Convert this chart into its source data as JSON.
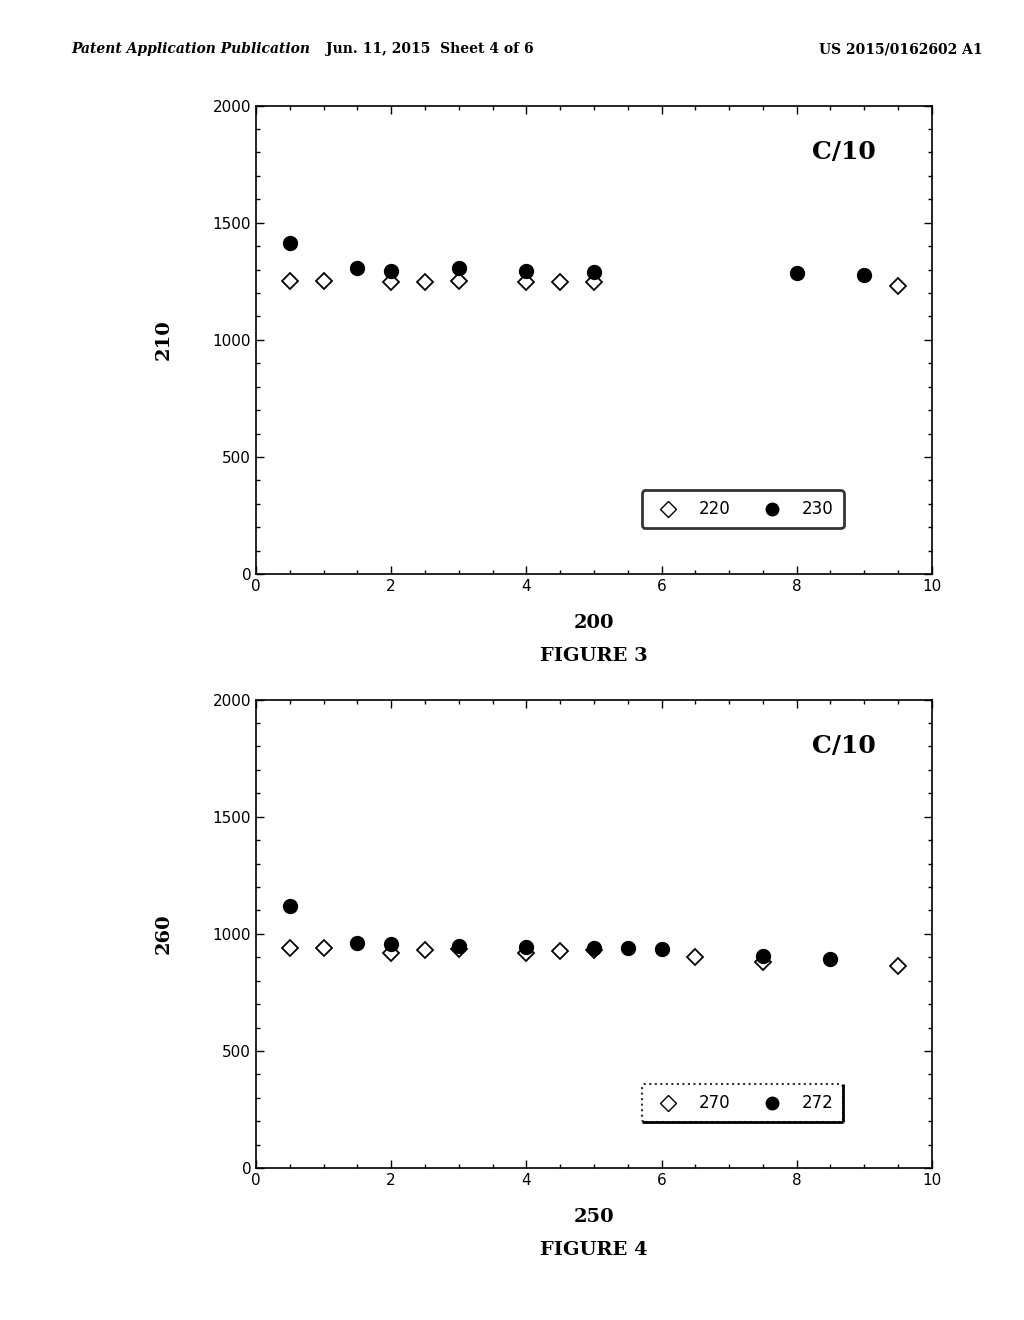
{
  "fig3": {
    "ylabel": "210",
    "xlabel": "200",
    "title_text": "C/10",
    "ylim": [
      0,
      2000
    ],
    "xlim": [
      0,
      10
    ],
    "yticks": [
      0,
      500,
      1000,
      1500,
      2000
    ],
    "xticks": [
      0,
      2,
      4,
      6,
      8,
      10
    ],
    "series220_x": [
      0.5,
      1.0,
      2.0,
      2.5,
      3.0,
      4.0,
      4.5,
      5.0,
      9.5
    ],
    "series220_y": [
      1250,
      1250,
      1248,
      1248,
      1250,
      1248,
      1248,
      1248,
      1228
    ],
    "series230_x": [
      0.5,
      1.5,
      2.0,
      3.0,
      4.0,
      5.0,
      8.0,
      9.0
    ],
    "series230_y": [
      1415,
      1305,
      1295,
      1305,
      1295,
      1290,
      1285,
      1275
    ],
    "legend_label1": "220",
    "legend_label2": "230",
    "figure_caption": "FIGURE 3",
    "legend_border": "solid"
  },
  "fig4": {
    "ylabel": "260",
    "xlabel": "250",
    "title_text": "C/10",
    "ylim": [
      0,
      2000
    ],
    "xlim": [
      0,
      10
    ],
    "yticks": [
      0,
      500,
      1000,
      1500,
      2000
    ],
    "xticks": [
      0,
      2,
      4,
      6,
      8,
      10
    ],
    "series270_x": [
      0.5,
      1.0,
      2.0,
      2.5,
      3.0,
      4.0,
      4.5,
      5.0,
      6.5,
      7.5,
      9.5
    ],
    "series270_y": [
      940,
      940,
      920,
      930,
      935,
      920,
      925,
      930,
      900,
      880,
      865
    ],
    "series272_x": [
      0.5,
      1.5,
      2.0,
      3.0,
      4.0,
      5.0,
      5.5,
      6.0,
      7.5,
      8.5
    ],
    "series272_y": [
      1120,
      960,
      955,
      950,
      945,
      940,
      940,
      935,
      905,
      895
    ],
    "legend_label1": "270",
    "legend_label2": "272",
    "figure_caption": "FIGURE 4",
    "legend_border": "dotted"
  },
  "header_left": "Patent Application Publication",
  "header_mid": "Jun. 11, 2015  Sheet 4 of 6",
  "header_right": "US 2015/0162602 A1",
  "bg_color": "#ffffff",
  "text_color": "#000000",
  "marker_size": 9,
  "fontsize_axis_label": 14,
  "fontsize_tick": 11,
  "fontsize_annot": 18,
  "fontsize_legend": 12,
  "fontsize_header": 10,
  "fontsize_caption": 14
}
